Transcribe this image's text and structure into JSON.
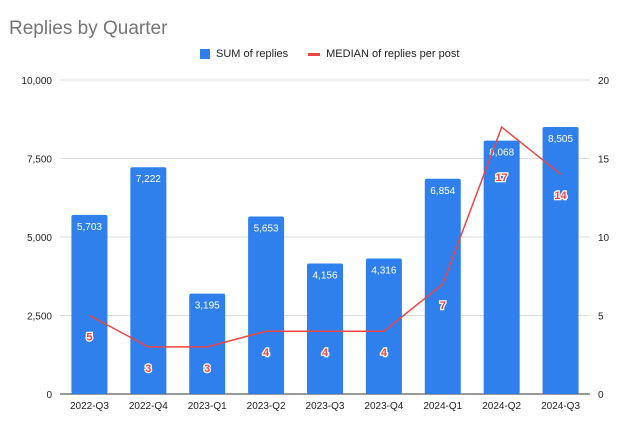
{
  "chart_data": {
    "type": "bar+line",
    "title": "Replies by Quarter",
    "categories": [
      "2022-Q3",
      "2022-Q4",
      "2023-Q1",
      "2023-Q2",
      "2023-Q3",
      "2023-Q4",
      "2024-Q1",
      "2024-Q2",
      "2024-Q3"
    ],
    "series": [
      {
        "name": "SUM of replies",
        "type": "bar",
        "axis": "left",
        "color": "#2f80ed",
        "values": [
          5703,
          7222,
          3195,
          5653,
          4156,
          4316,
          6854,
          8068,
          8505
        ],
        "labels": [
          "5,703",
          "7,222",
          "3,195",
          "5,653",
          "4,156",
          "4,316",
          "6,854",
          "8,068",
          "8,505"
        ]
      },
      {
        "name": "MEDIAN of replies per post",
        "type": "line",
        "axis": "right",
        "color": "#ef4444",
        "values": [
          5,
          3,
          3,
          4,
          4,
          4,
          7,
          17,
          14
        ]
      }
    ],
    "left_axis": {
      "range": [
        0,
        10000
      ],
      "ticks": [
        "0",
        "2,500",
        "5,000",
        "7,500",
        "10,000"
      ]
    },
    "right_axis": {
      "range": [
        0,
        20
      ],
      "ticks": [
        "0",
        "5",
        "10",
        "15",
        "20"
      ]
    },
    "legend": "top-center",
    "grid": true
  }
}
